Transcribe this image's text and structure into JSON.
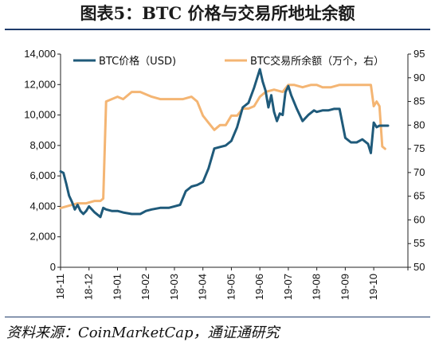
{
  "figure": {
    "title": "图表5：BTC 价格与交易所地址余额",
    "source": "资料来源：CoinMarketCap，通证通研究"
  },
  "chart_data": {
    "type": "line",
    "title": "图表5：BTC 价格与交易所地址余额",
    "x_ticks": [
      "18-11",
      "18-12",
      "19-01",
      "19-02",
      "19-03",
      "19-04",
      "19-05",
      "19-06",
      "19-07",
      "19-08",
      "19-09",
      "19-10"
    ],
    "x_range": [
      0,
      12.2
    ],
    "y_left": {
      "range": [
        0,
        14000
      ],
      "ticks": [
        "0",
        "2,000",
        "4,000",
        "6,000",
        "8,000",
        "10,000",
        "12,000",
        "14,000"
      ]
    },
    "y_right": {
      "range": [
        50,
        95
      ],
      "ticks": [
        "50",
        "55",
        "60",
        "65",
        "70",
        "75",
        "80",
        "85",
        "90",
        "95"
      ]
    },
    "legend_position": "top",
    "grid": false,
    "series": [
      {
        "name": "BTC价格（USD)",
        "axis": "left",
        "color": "#1f5a7a",
        "x": [
          0,
          0.1,
          0.2,
          0.3,
          0.4,
          0.5,
          0.6,
          0.7,
          0.8,
          0.9,
          1.0,
          1.2,
          1.4,
          1.5,
          1.6,
          1.8,
          2.0,
          2.2,
          2.5,
          2.8,
          3.0,
          3.2,
          3.5,
          3.8,
          4.0,
          4.2,
          4.4,
          4.6,
          4.8,
          5.0,
          5.2,
          5.4,
          5.6,
          5.8,
          6.0,
          6.2,
          6.4,
          6.6,
          6.8,
          7.0,
          7.1,
          7.2,
          7.3,
          7.4,
          7.5,
          7.6,
          7.7,
          7.8,
          7.9,
          8.0,
          8.1,
          8.3,
          8.5,
          8.7,
          8.9,
          9.0,
          9.2,
          9.4,
          9.6,
          9.8,
          10.0,
          10.2,
          10.4,
          10.6,
          10.8,
          10.9,
          11.0,
          11.1,
          11.2,
          11.3,
          11.4,
          11.5
        ],
        "values": [
          6300,
          6200,
          5500,
          4700,
          4300,
          3800,
          4100,
          3700,
          3500,
          3700,
          4000,
          3600,
          3300,
          3900,
          3800,
          3700,
          3700,
          3600,
          3500,
          3500,
          3700,
          3800,
          3900,
          3900,
          4000,
          4100,
          5000,
          5300,
          5400,
          5600,
          6500,
          7800,
          7900,
          8000,
          8300,
          9200,
          10500,
          10800,
          11800,
          13000,
          12200,
          11600,
          10500,
          11300,
          10200,
          9600,
          10100,
          10000,
          11500,
          11900,
          11300,
          10400,
          9600,
          10000,
          10300,
          10200,
          10300,
          10300,
          10400,
          10400,
          8500,
          8200,
          8200,
          8400,
          8100,
          7500,
          9500,
          9200,
          9300,
          9300,
          9300,
          9300
        ]
      },
      {
        "name": "BTC交易所余额（万个，右）",
        "axis": "right",
        "color": "#f4b573",
        "x": [
          0,
          0.3,
          0.6,
          0.9,
          1.2,
          1.4,
          1.5,
          1.6,
          1.8,
          2.0,
          2.2,
          2.5,
          2.8,
          3.0,
          3.2,
          3.5,
          3.8,
          4.0,
          4.3,
          4.6,
          4.8,
          5.0,
          5.2,
          5.4,
          5.6,
          5.8,
          6.0,
          6.2,
          6.4,
          6.6,
          6.8,
          7.0,
          7.2,
          7.5,
          7.8,
          8.0,
          8.2,
          8.5,
          8.8,
          9.0,
          9.2,
          9.5,
          9.8,
          10.0,
          10.3,
          10.6,
          10.9,
          11.0,
          11.1,
          11.2,
          11.3,
          11.4
        ],
        "values": [
          62.5,
          63,
          63.5,
          63.5,
          64,
          64,
          64.5,
          85,
          85.5,
          86,
          85.5,
          87,
          87,
          86.5,
          86,
          85.5,
          85.5,
          85.5,
          85.5,
          86,
          85,
          82,
          80.5,
          79,
          80,
          80,
          82,
          82,
          83.5,
          83.5,
          84,
          86,
          87,
          87.5,
          87,
          88.5,
          88.5,
          88,
          88.5,
          88.5,
          88,
          88,
          88.5,
          88.5,
          88.5,
          88.5,
          88.5,
          84,
          85,
          84,
          75.5,
          75
        ]
      }
    ]
  }
}
